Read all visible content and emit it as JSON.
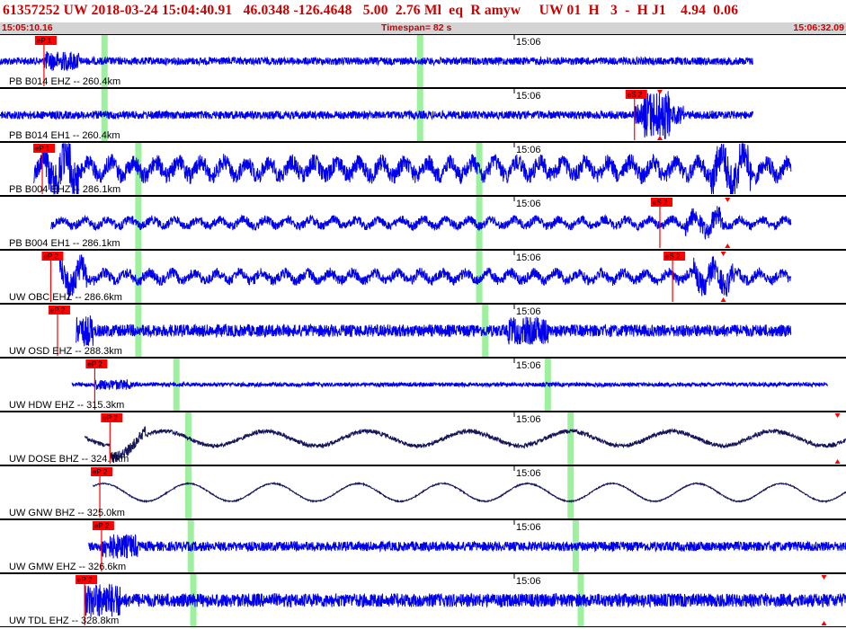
{
  "header": {
    "title": "61357252 UW 2018-03-24 15:04:40.91   46.0348 -126.4648   5.00  2.76 Ml  eq  R amyw     UW 01  H   3  -  H J1    4.94  0.06",
    "start_time": "15:05:10.16",
    "timespan": "Timespan=  82 s",
    "end_time": "15:06:32.09"
  },
  "minute_tick_label": "15:06",
  "colors": {
    "trace": "#0000ee",
    "trace_dark": "#15155a",
    "pick": "#ff0000",
    "window": "#9df09d",
    "title": "#cc0000"
  },
  "channels": [
    {
      "label": "PB B014 EHZ -- 260.4km",
      "color": "trace",
      "kind": "fast",
      "amp": 0.28,
      "start": 0.0,
      "end": 0.89,
      "burst": 0.055,
      "picks": [
        {
          "x": 0.052,
          "text": "eP 1"
        }
      ],
      "windows": [
        0.123,
        0.496
      ],
      "marks": [],
      "bigevent": null
    },
    {
      "label": "PB B014 EH1 -- 260.4km",
      "color": "trace",
      "kind": "fast",
      "amp": 0.3,
      "start": 0.0,
      "end": 0.89,
      "burst": 0.06,
      "picks": [
        {
          "x": 0.75,
          "text": "eS 2"
        }
      ],
      "windows": [
        0.123,
        0.496
      ],
      "marks": [
        0.78
      ],
      "bigevent": 0.76
    },
    {
      "label": "PB B004 EHZ -- 286.1km",
      "color": "trace",
      "kind": "mid",
      "amp": 0.7,
      "start": 0.04,
      "end": 0.935,
      "burst": 0.1,
      "picks": [
        {
          "x": 0.05,
          "text": "eP 1"
        }
      ],
      "windows": [
        0.163,
        0.566
      ],
      "marks": [],
      "bigevent": 0.84
    },
    {
      "label": "PB B004 EH1 -- 286.1km",
      "color": "trace",
      "kind": "mid",
      "amp": 0.35,
      "start": 0.06,
      "end": 0.935,
      "burst": 0.0,
      "picks": [
        {
          "x": 0.78,
          "text": "eS 2"
        }
      ],
      "windows": [
        0.163,
        0.566
      ],
      "marks": [
        0.86
      ],
      "bigevent": 0.81
    },
    {
      "label": "UW OBC EHZ -- 286.6km",
      "color": "trace",
      "kind": "mid",
      "amp": 0.42,
      "start": 0.07,
      "end": 0.935,
      "burst": 0.09,
      "picks": [
        {
          "x": 0.06,
          "text": "eP 2"
        },
        {
          "x": 0.795,
          "text": "eS 2"
        }
      ],
      "windows": [
        0.163,
        0.566
      ],
      "marks": [
        0.855
      ],
      "bigevent": 0.82
    },
    {
      "label": "UW OSD EHZ -- 288.3km",
      "color": "trace",
      "kind": "fast",
      "amp": 0.45,
      "start": 0.09,
      "end": 0.935,
      "burst": 0.1,
      "picks": [
        {
          "x": 0.068,
          "text": "eP 2"
        }
      ],
      "windows": [
        0.163,
        0.573
      ],
      "marks": [],
      "bigevent": 0.6
    },
    {
      "label": "UW HDW EHZ -- 315.3km",
      "color": "trace",
      "kind": "fast",
      "amp": 0.15,
      "start": 0.085,
      "end": 0.978,
      "burst": 0.14,
      "picks": [
        {
          "x": 0.112,
          "text": "eP 2"
        }
      ],
      "windows": [
        0.208,
        0.647
      ],
      "marks": [],
      "bigevent": null
    },
    {
      "label": "UW DOSE BHZ -- 324.7km",
      "color": "trace_dark",
      "kind": "wave",
      "amp": 0.45,
      "start": 0.1,
      "end": 1.0,
      "burst": 0.15,
      "picks": [
        {
          "x": 0.13,
          "text": "eP 2"
        }
      ],
      "windows": [
        0.222,
        0.674
      ],
      "marks": [
        0.99
      ],
      "bigevent": null
    },
    {
      "label": "UW GNW BHZ -- 325.0km",
      "color": "trace_dark",
      "kind": "slow",
      "amp": 0.55,
      "start": 0.11,
      "end": 1.0,
      "burst": 0.0,
      "picks": [
        {
          "x": 0.118,
          "text": "eP 2"
        }
      ],
      "windows": [
        0.222,
        0.674
      ],
      "marks": [],
      "bigevent": null
    },
    {
      "label": "UW GMW EHZ -- 326.6km",
      "color": "trace",
      "kind": "fast",
      "amp": 0.35,
      "start": 0.105,
      "end": 1.0,
      "burst": 0.15,
      "picks": [
        {
          "x": 0.12,
          "text": "eP 2"
        }
      ],
      "windows": [
        0.225,
        0.68
      ],
      "marks": [],
      "bigevent": null
    },
    {
      "label": "UW TDL EHZ -- 328.8km",
      "color": "trace",
      "kind": "fast",
      "amp": 0.5,
      "start": 0.1,
      "end": 1.0,
      "burst": 0.16,
      "picks": [
        {
          "x": 0.1,
          "text": "eP 2"
        }
      ],
      "windows": [
        0.228,
        0.686
      ],
      "marks": [
        0.974
      ],
      "bigevent": null
    }
  ]
}
